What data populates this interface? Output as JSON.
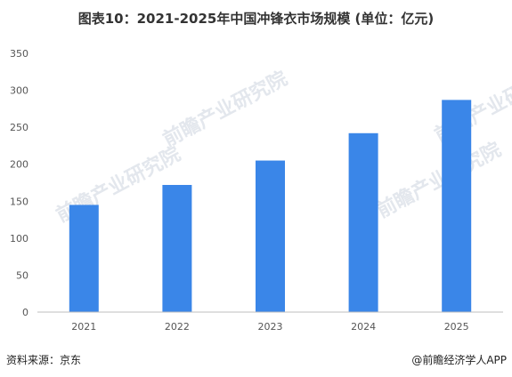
{
  "title": "图表10：2021-2025年中国冲锋衣市场规模 (单位：亿元)",
  "watermark": "前瞻产业研究院",
  "footer": {
    "source": "资料来源：京东",
    "credit": "@前瞻经济学人APP"
  },
  "colors": {
    "bar": "#3a86e8",
    "axis": "#bfbfbf",
    "text": "#555555"
  },
  "chart_data": {
    "type": "bar",
    "title": "图表10：2021-2025年中国冲锋衣市场规模 (单位：亿元)",
    "categories": [
      "2021",
      "2022",
      "2023",
      "2024",
      "2025"
    ],
    "values": [
      145,
      172,
      205,
      242,
      287
    ],
    "ylim": [
      0,
      350
    ],
    "yticks": [
      0,
      50,
      100,
      150,
      200,
      250,
      300,
      350
    ],
    "grid": false,
    "legend": "none"
  }
}
